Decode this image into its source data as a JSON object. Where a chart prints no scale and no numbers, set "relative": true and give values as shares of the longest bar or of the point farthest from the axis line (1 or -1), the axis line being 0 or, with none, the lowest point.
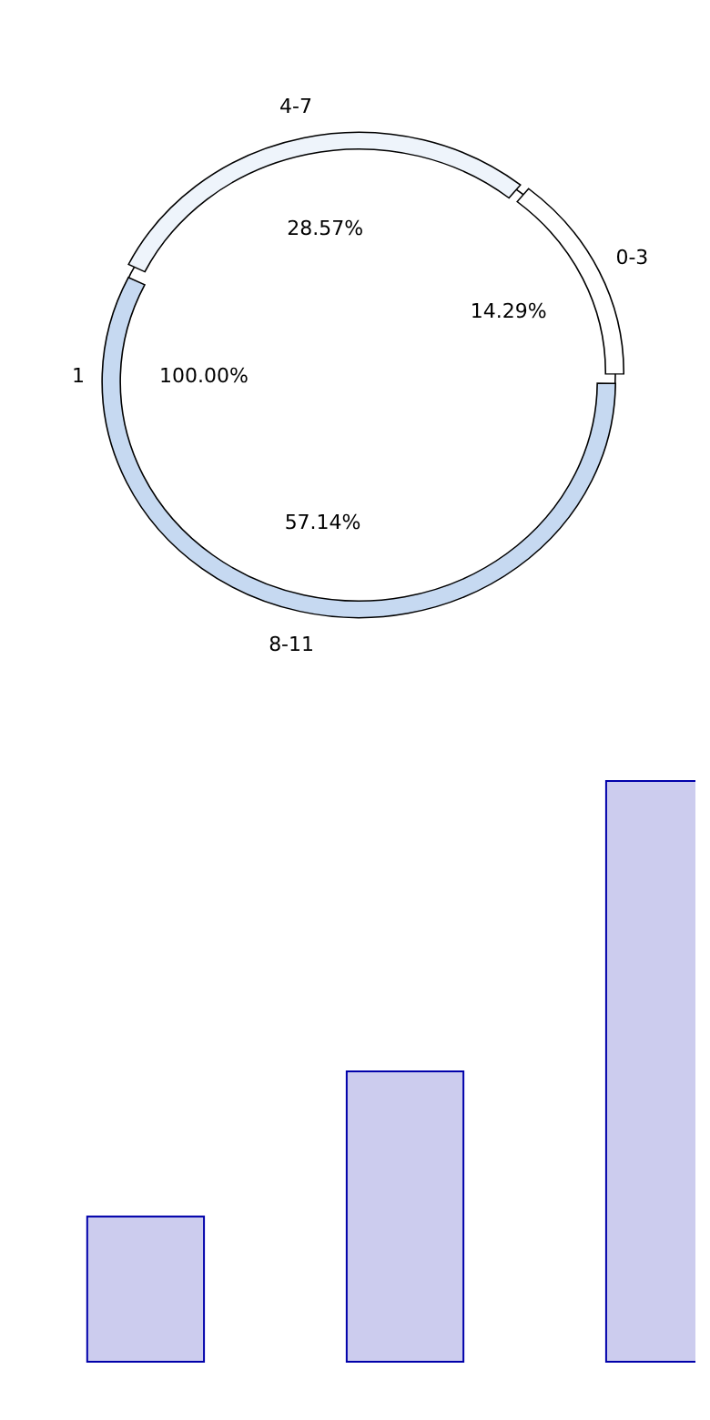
{
  "chart_data": [
    {
      "type": "pie",
      "categories": [
        "1"
      ],
      "values": [
        100
      ],
      "colors": [
        "#ffffff"
      ],
      "value_labels": [
        "100.00%"
      ]
    },
    {
      "type": "donut",
      "categories": [
        "0-3",
        "8-11",
        "4-7"
      ],
      "values": [
        14.29,
        57.14,
        28.57
      ],
      "colors": [
        "#ffffff",
        "#c6d9f1",
        "#eef4fb"
      ],
      "value_labels": [
        "14.29%",
        "57.14%",
        "28.57%"
      ]
    },
    {
      "type": "bar",
      "relative": true,
      "categories": [
        null,
        null,
        null
      ],
      "values": [
        0.25,
        0.5,
        1
      ],
      "color": "#ccccee"
    }
  ]
}
